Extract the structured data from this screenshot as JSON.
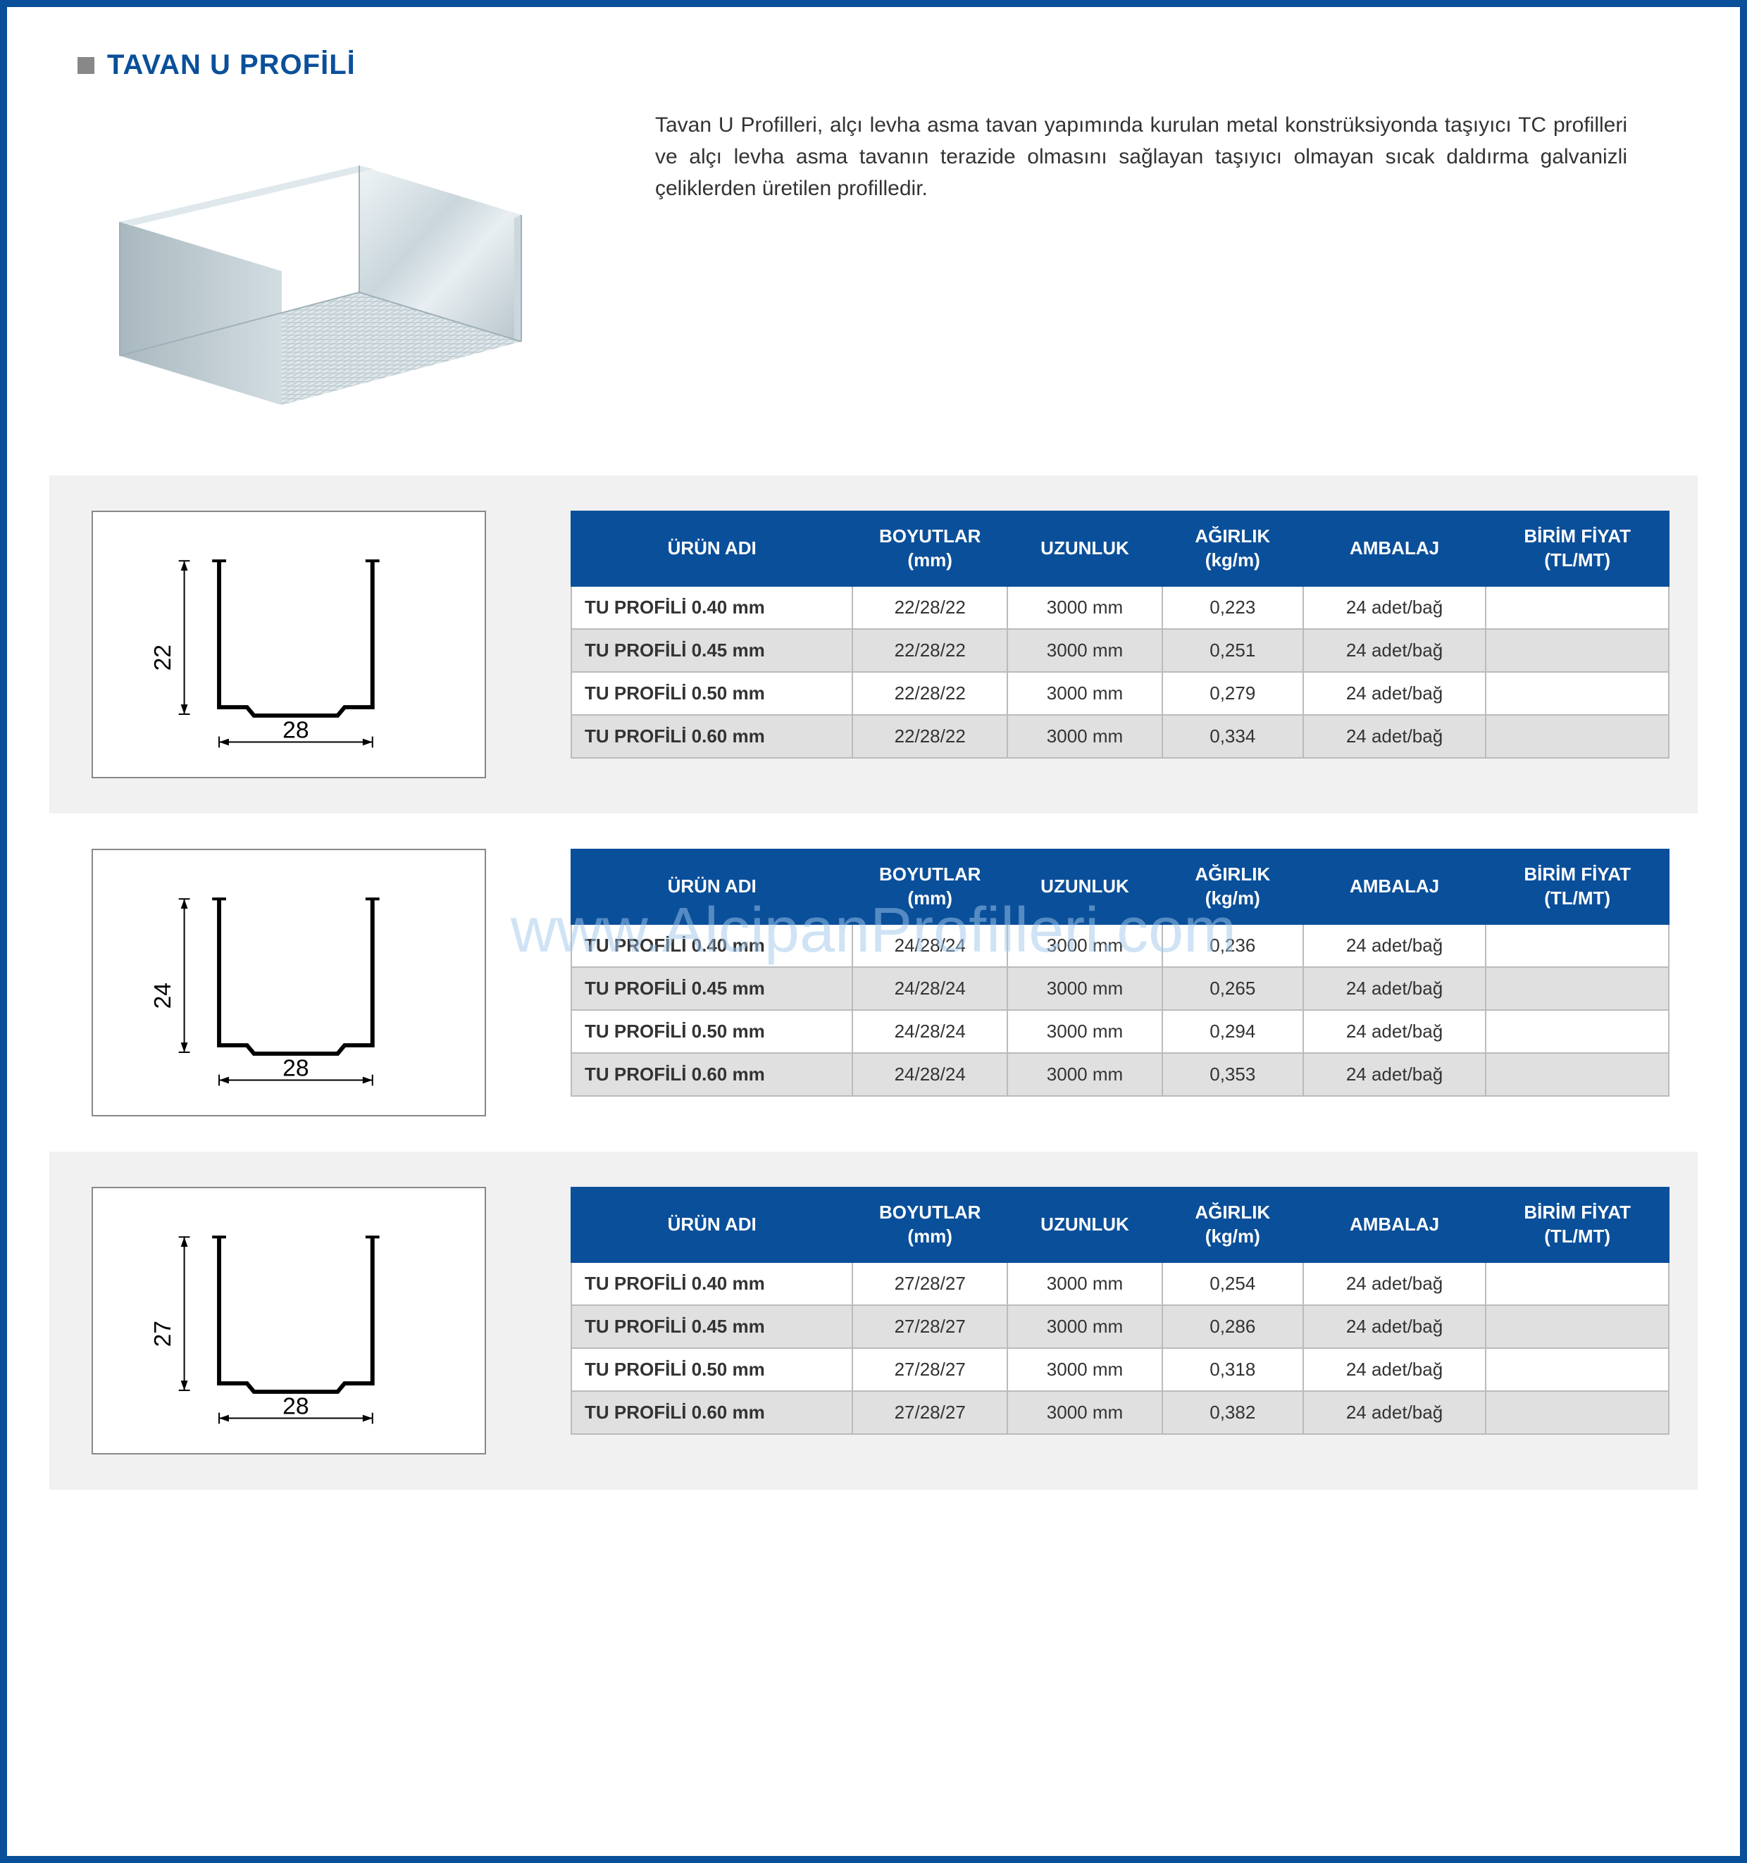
{
  "colors": {
    "brand": "#0a4f9a",
    "border_outer": "#0a4f9a",
    "header_bg": "#0a4f9a",
    "header_text": "#ffffff",
    "section_gray": "#f1f1f1",
    "row_alt": "#e0e0e0",
    "cell_border": "#bbbbbb",
    "title_square": "#888888",
    "watermark": "rgba(160,200,235,0.5)"
  },
  "title": "TAVAN U PROFİLİ",
  "intro_text": "Tavan U Profilleri, alçı levha asma tavan yapımında kurulan metal konstrüksiyonda taşıyıcı TC profilleri ve alçı levha asma tavanın terazide olmasını sağlayan taşıyıcı olmayan sıcak daldırma galvanizli çeliklerden üretilen profilledir.",
  "watermark": "www.AlcipanProfilleri.com",
  "table_headers": [
    "ÜRÜN ADI",
    "BOYUTLAR (mm)",
    "UZUNLUK",
    "AĞIRLIK (kg/m)",
    "AMBALAJ",
    "BİRİM FİYAT (TL/MT)"
  ],
  "sections": [
    {
      "cross": {
        "height_label": "22",
        "width_label": "28"
      },
      "rows": [
        {
          "name": "TU PROFİLİ 0.40 mm",
          "dim": "22/28/22",
          "len": "3000 mm",
          "weight": "0,223",
          "pkg": "24 adet/bağ",
          "price": ""
        },
        {
          "name": "TU PROFİLİ 0.45 mm",
          "dim": "22/28/22",
          "len": "3000 mm",
          "weight": "0,251",
          "pkg": "24 adet/bağ",
          "price": ""
        },
        {
          "name": "TU PROFİLİ 0.50 mm",
          "dim": "22/28/22",
          "len": "3000 mm",
          "weight": "0,279",
          "pkg": "24 adet/bağ",
          "price": ""
        },
        {
          "name": "TU PROFİLİ 0.60 mm",
          "dim": "22/28/22",
          "len": "3000 mm",
          "weight": "0,334",
          "pkg": "24 adet/bağ",
          "price": ""
        }
      ]
    },
    {
      "cross": {
        "height_label": "24",
        "width_label": "28"
      },
      "rows": [
        {
          "name": "TU PROFİLİ 0.40 mm",
          "dim": "24/28/24",
          "len": "3000 mm",
          "weight": "0,236",
          "pkg": "24 adet/bağ",
          "price": ""
        },
        {
          "name": "TU PROFİLİ 0.45 mm",
          "dim": "24/28/24",
          "len": "3000 mm",
          "weight": "0,265",
          "pkg": "24 adet/bağ",
          "price": ""
        },
        {
          "name": "TU PROFİLİ 0.50 mm",
          "dim": "24/28/24",
          "len": "3000 mm",
          "weight": "0,294",
          "pkg": "24 adet/bağ",
          "price": ""
        },
        {
          "name": "TU PROFİLİ 0.60 mm",
          "dim": "24/28/24",
          "len": "3000 mm",
          "weight": "0,353",
          "pkg": "24 adet/bağ",
          "price": ""
        }
      ]
    },
    {
      "cross": {
        "height_label": "27",
        "width_label": "28"
      },
      "rows": [
        {
          "name": "TU PROFİLİ 0.40 mm",
          "dim": "27/28/27",
          "len": "3000 mm",
          "weight": "0,254",
          "pkg": "24 adet/bağ",
          "price": ""
        },
        {
          "name": "TU PROFİLİ 0.45 mm",
          "dim": "27/28/27",
          "len": "3000 mm",
          "weight": "0,286",
          "pkg": "24 adet/bağ",
          "price": ""
        },
        {
          "name": "TU PROFİLİ 0.50 mm",
          "dim": "27/28/27",
          "len": "3000 mm",
          "weight": "0,318",
          "pkg": "24 adet/bağ",
          "price": ""
        },
        {
          "name": "TU PROFİLİ 0.60 mm",
          "dim": "27/28/27",
          "len": "3000 mm",
          "weight": "0,382",
          "pkg": "24 adet/bağ",
          "price": ""
        }
      ]
    }
  ]
}
